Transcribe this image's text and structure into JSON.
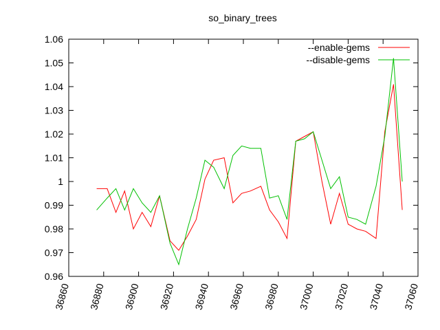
{
  "chart_data": {
    "type": "line",
    "title": "so_binary_trees",
    "xlabel": "",
    "ylabel": "",
    "xlim": [
      36860,
      37060
    ],
    "ylim": [
      0.96,
      1.06
    ],
    "x_ticks": [
      "36860",
      "36880",
      "36900",
      "36920",
      "36940",
      "36960",
      "36980",
      "37000",
      "37020",
      "37040",
      "37060"
    ],
    "y_ticks": [
      "0.96",
      "0.97",
      "0.98",
      "0.99",
      "1",
      "1.01",
      "1.02",
      "1.03",
      "1.04",
      "1.05",
      "1.06"
    ],
    "grid": false,
    "legend_position": "top-right",
    "series": [
      {
        "name": "--enable-gems",
        "color": "#ff0000",
        "points": [
          [
            36876,
            0.997
          ],
          [
            36882,
            0.997
          ],
          [
            36887,
            0.987
          ],
          [
            36892,
            0.996
          ],
          [
            36897,
            0.98
          ],
          [
            36902,
            0.987
          ],
          [
            36907,
            0.981
          ],
          [
            36912,
            0.994
          ],
          [
            36918,
            0.975
          ],
          [
            36923,
            0.971
          ],
          [
            36928,
            0.977
          ],
          [
            36933,
            0.984
          ],
          [
            36938,
            1.001
          ],
          [
            36943,
            1.009
          ],
          [
            36949,
            1.01
          ],
          [
            36954,
            0.991
          ],
          [
            36959,
            0.995
          ],
          [
            36964,
            0.996
          ],
          [
            36970,
            0.998
          ],
          [
            36975,
            0.988
          ],
          [
            36980,
            0.983
          ],
          [
            36985,
            0.976
          ],
          [
            36990,
            1.017
          ],
          [
            36995,
            1.019
          ],
          [
            37000,
            1.021
          ],
          [
            37005,
            1.0
          ],
          [
            37010,
            0.982
          ],
          [
            37015,
            0.995
          ],
          [
            37020,
            0.982
          ],
          [
            37025,
            0.98
          ],
          [
            37030,
            0.979
          ],
          [
            37036,
            0.976
          ],
          [
            37041,
            1.021
          ],
          [
            37046,
            1.041
          ],
          [
            37051,
            0.988
          ]
        ]
      },
      {
        "name": "--disable-gems",
        "color": "#00c000",
        "points": [
          [
            36876,
            0.988
          ],
          [
            36882,
            0.993
          ],
          [
            36887,
            0.997
          ],
          [
            36892,
            0.988
          ],
          [
            36897,
            0.997
          ],
          [
            36902,
            0.991
          ],
          [
            36907,
            0.987
          ],
          [
            36912,
            0.994
          ],
          [
            36918,
            0.974
          ],
          [
            36923,
            0.965
          ],
          [
            36928,
            0.98
          ],
          [
            36933,
            0.993
          ],
          [
            36938,
            1.009
          ],
          [
            36943,
            1.006
          ],
          [
            36949,
            0.997
          ],
          [
            36954,
            1.011
          ],
          [
            36959,
            1.015
          ],
          [
            36964,
            1.014
          ],
          [
            36970,
            1.014
          ],
          [
            36975,
            0.993
          ],
          [
            36980,
            0.994
          ],
          [
            36985,
            0.984
          ],
          [
            36990,
            1.017
          ],
          [
            36995,
            1.018
          ],
          [
            37000,
            1.021
          ],
          [
            37005,
            1.009
          ],
          [
            37010,
            0.997
          ],
          [
            37015,
            1.002
          ],
          [
            37020,
            0.985
          ],
          [
            37025,
            0.984
          ],
          [
            37030,
            0.982
          ],
          [
            37036,
            0.998
          ],
          [
            37041,
            1.019
          ],
          [
            37046,
            1.052
          ],
          [
            37051,
            1.0
          ]
        ]
      }
    ]
  }
}
